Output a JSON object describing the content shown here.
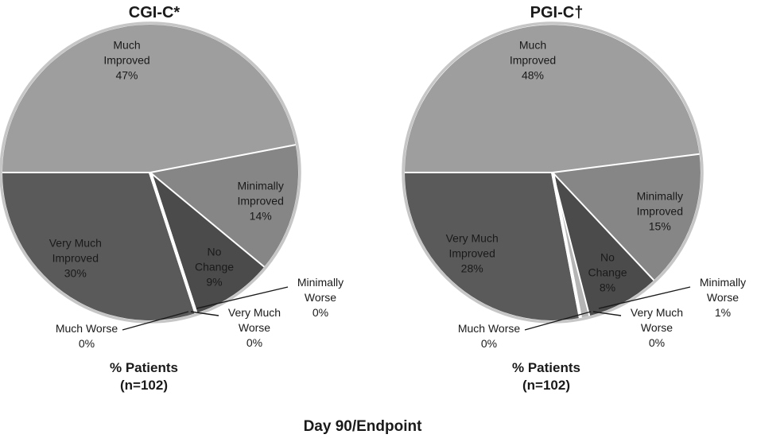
{
  "figure": {
    "footer": "Day 90/Endpoint"
  },
  "colors": {
    "background": "#ffffff",
    "text": "#1a1a1a",
    "separator": "#ffffff",
    "rim_ring": "#c6c6c6",
    "leader_line": "#1a1a1a"
  },
  "chart_data": [
    {
      "type": "pie",
      "title": "CGI-C*",
      "caption": [
        "% Patients",
        "(n=102)"
      ],
      "n": 102,
      "slices": [
        {
          "label": "Much Improved",
          "lines": [
            "Much",
            "Improved"
          ],
          "pct": "47%",
          "value": 47,
          "color": "#9e9e9e",
          "placement": "inside"
        },
        {
          "label": "Minimally Improved",
          "lines": [
            "Minimally",
            "Improved"
          ],
          "pct": "14%",
          "value": 14,
          "color": "#868686",
          "placement": "inside"
        },
        {
          "label": "No Change",
          "lines": [
            "No",
            "Change"
          ],
          "pct": "9%",
          "value": 9,
          "color": "#4b4b4b",
          "placement": "inside"
        },
        {
          "label": "Minimally Worse",
          "lines": [
            "Minimally",
            "Worse"
          ],
          "pct": "0%",
          "value": 0,
          "color": "#b5b5b5",
          "placement": "outside-right"
        },
        {
          "label": "Much Worse",
          "lines": [
            "Much Worse"
          ],
          "pct": "0%",
          "value": 0,
          "color": "#999999",
          "placement": "outside-left"
        },
        {
          "label": "Very Much Worse",
          "lines": [
            "Very Much",
            "Worse"
          ],
          "pct": "0%",
          "value": 0,
          "color": "#6e6e6e",
          "placement": "outside-bottom"
        },
        {
          "label": "Very Much Improved",
          "lines": [
            "Very Much",
            "Improved"
          ],
          "pct": "30%",
          "value": 30,
          "color": "#5a5a5a",
          "placement": "inside"
        }
      ]
    },
    {
      "type": "pie",
      "title": "PGI-C†",
      "caption": [
        "% Patients",
        "(n=102)"
      ],
      "n": 102,
      "slices": [
        {
          "label": "Much Improved",
          "lines": [
            "Much",
            "Improved"
          ],
          "pct": "48%",
          "value": 48,
          "color": "#9e9e9e",
          "placement": "inside"
        },
        {
          "label": "Minimally Improved",
          "lines": [
            "Minimally",
            "Improved"
          ],
          "pct": "15%",
          "value": 15,
          "color": "#868686",
          "placement": "inside"
        },
        {
          "label": "No Change",
          "lines": [
            "No",
            "Change"
          ],
          "pct": "8%",
          "value": 8,
          "color": "#4b4b4b",
          "placement": "inside"
        },
        {
          "label": "Minimally Worse",
          "lines": [
            "Minimally",
            "Worse"
          ],
          "pct": "1%",
          "value": 1,
          "color": "#b5b5b5",
          "placement": "outside-right"
        },
        {
          "label": "Much Worse",
          "lines": [
            "Much Worse"
          ],
          "pct": "0%",
          "value": 0,
          "color": "#999999",
          "placement": "outside-left"
        },
        {
          "label": "Very Much Worse",
          "lines": [
            "Very Much",
            "Worse"
          ],
          "pct": "0%",
          "value": 0,
          "color": "#6e6e6e",
          "placement": "outside-bottom"
        },
        {
          "label": "Very Much Improved",
          "lines": [
            "Very Much",
            "Improved"
          ],
          "pct": "28%",
          "value": 28,
          "color": "#5a5a5a",
          "placement": "inside"
        }
      ]
    }
  ]
}
